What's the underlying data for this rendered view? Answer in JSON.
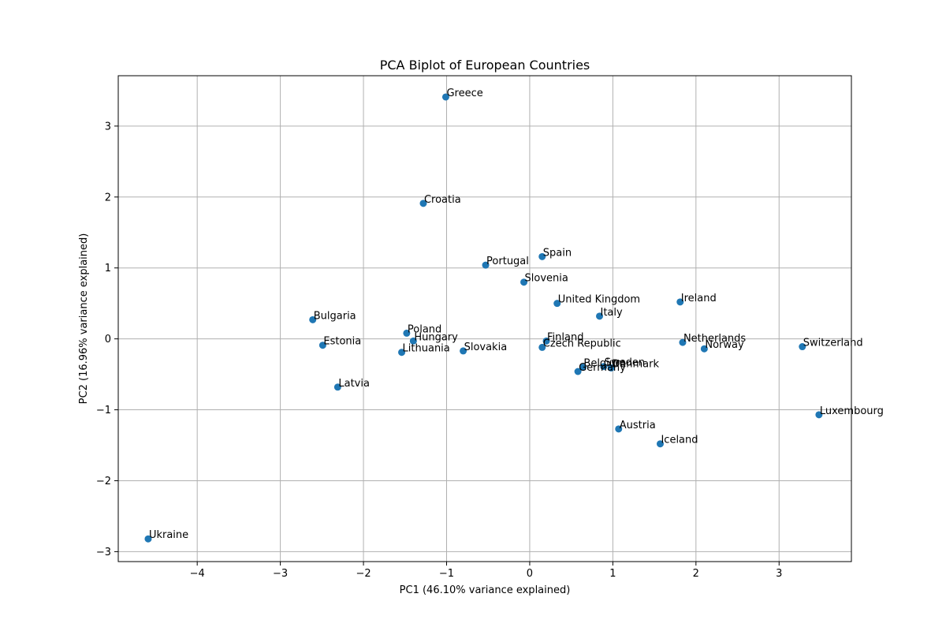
{
  "chart_data": {
    "type": "scatter",
    "title": "PCA Biplot of European Countries",
    "xlabel": "PC1 (46.10% variance explained)",
    "ylabel": "PC2 (16.96% variance explained)",
    "xlim": [
      -4.95,
      3.87
    ],
    "ylim": [
      -3.14,
      3.71
    ],
    "xticks": [
      -4,
      -3,
      -2,
      -1,
      0,
      1,
      2,
      3
    ],
    "yticks": [
      -3,
      -2,
      -1,
      0,
      1,
      2,
      3
    ],
    "xtick_labels": [
      "−4",
      "−3",
      "−2",
      "−1",
      "0",
      "1",
      "2",
      "3"
    ],
    "ytick_labels": [
      "−3",
      "−2",
      "−1",
      "0",
      "1",
      "2",
      "3"
    ],
    "grid": true,
    "point_color": "#1f77b4",
    "grid_color": "#b0b0b0",
    "points": [
      {
        "label": "Greece",
        "x": -1.01,
        "y": 3.41
      },
      {
        "label": "Croatia",
        "x": -1.28,
        "y": 1.91
      },
      {
        "label": "Spain",
        "x": 0.15,
        "y": 1.16
      },
      {
        "label": "Portugal",
        "x": -0.53,
        "y": 1.04
      },
      {
        "label": "Slovenia",
        "x": -0.07,
        "y": 0.8
      },
      {
        "label": "United Kingdom",
        "x": 0.33,
        "y": 0.5
      },
      {
        "label": "Ireland",
        "x": 1.81,
        "y": 0.52
      },
      {
        "label": "Italy",
        "x": 0.84,
        "y": 0.32
      },
      {
        "label": "Bulgaria",
        "x": -2.61,
        "y": 0.27
      },
      {
        "label": "Poland",
        "x": -1.48,
        "y": 0.08
      },
      {
        "label": "Hungary",
        "x": -1.4,
        "y": -0.03
      },
      {
        "label": "Finland",
        "x": 0.2,
        "y": -0.03
      },
      {
        "label": "Estonia",
        "x": -2.49,
        "y": -0.09
      },
      {
        "label": "Netherlands",
        "x": 1.84,
        "y": -0.05
      },
      {
        "label": "Czech Republic",
        "x": 0.15,
        "y": -0.12
      },
      {
        "label": "Switzerland",
        "x": 3.28,
        "y": -0.11
      },
      {
        "label": "Norway",
        "x": 2.1,
        "y": -0.14
      },
      {
        "label": "Lithuania",
        "x": -1.54,
        "y": -0.19
      },
      {
        "label": "Slovakia",
        "x": -0.8,
        "y": -0.17
      },
      {
        "label": "Belgium",
        "x": 0.64,
        "y": -0.4
      },
      {
        "label": "Sweden",
        "x": 0.89,
        "y": -0.39
      },
      {
        "label": "Denmark",
        "x": 0.98,
        "y": -0.41
      },
      {
        "label": "Germany",
        "x": 0.58,
        "y": -0.46
      },
      {
        "label": "Latvia",
        "x": -2.31,
        "y": -0.68
      },
      {
        "label": "Luxembourg",
        "x": 3.48,
        "y": -1.07
      },
      {
        "label": "Austria",
        "x": 1.07,
        "y": -1.27
      },
      {
        "label": "Iceland",
        "x": 1.57,
        "y": -1.48
      },
      {
        "label": "Ukraine",
        "x": -4.59,
        "y": -2.82
      }
    ]
  }
}
